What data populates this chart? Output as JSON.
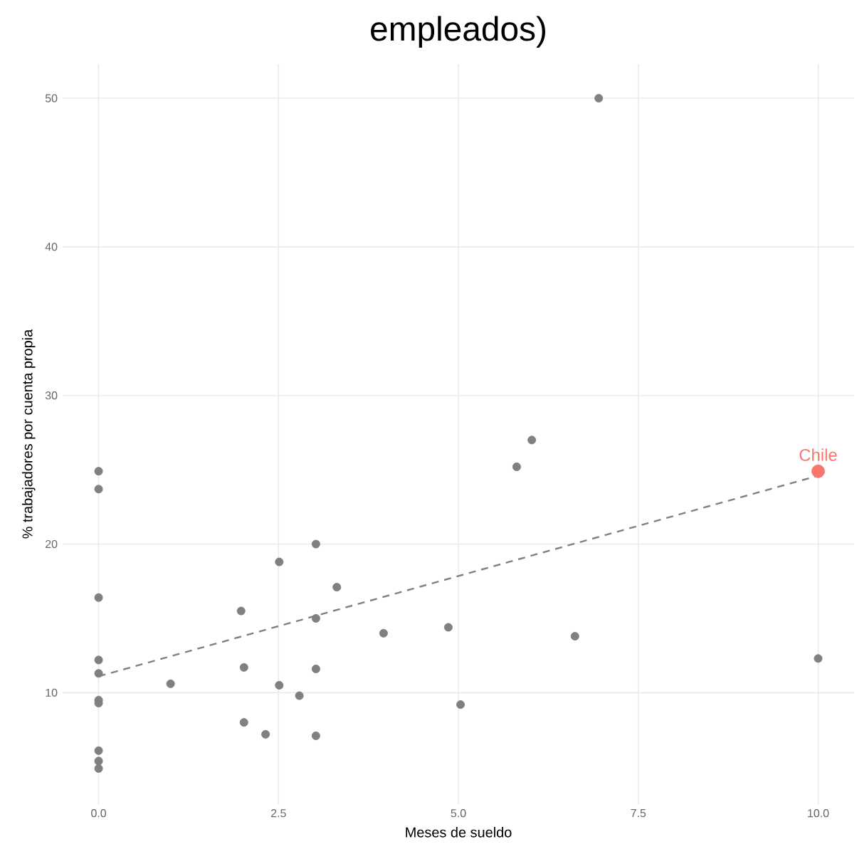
{
  "chart_data": {
    "type": "scatter",
    "title": "empleados)",
    "xlabel": "Meses de sueldo",
    "ylabel": "% trabajadores por cuenta propia",
    "xlim": [
      -0.5,
      10.5
    ],
    "ylim": [
      2.5,
      52.3
    ],
    "xticks": [
      {
        "value": 0,
        "label": "0.0"
      },
      {
        "value": 2.5,
        "label": "2.5"
      },
      {
        "value": 5,
        "label": "5.0"
      },
      {
        "value": 7.5,
        "label": "7.5"
      },
      {
        "value": 10,
        "label": "10.0"
      }
    ],
    "yticks": [
      10,
      20,
      30,
      40,
      50
    ],
    "grid": true,
    "series": [
      {
        "color": "#808080",
        "x": [
          0,
          0,
          0,
          0,
          0,
          0,
          0,
          0,
          0,
          0,
          1.0,
          1.98,
          2.02,
          2.02,
          2.32,
          2.51,
          2.51,
          2.79,
          3.02,
          3.02,
          3.02,
          3.02,
          3.31,
          3.96,
          4.86,
          5.03,
          5.81,
          6.02,
          6.62,
          6.95,
          10.0
        ],
        "values": [
          24.9,
          23.7,
          16.4,
          12.2,
          11.3,
          9.5,
          9.3,
          6.1,
          5.4,
          4.9,
          10.6,
          15.5,
          11.7,
          8.0,
          7.2,
          18.8,
          10.5,
          9.8,
          20.0,
          15.0,
          11.6,
          7.1,
          17.1,
          14.0,
          14.4,
          9.2,
          25.2,
          27.0,
          13.8,
          50.0,
          12.3
        ]
      },
      {
        "name": "Chile",
        "color": "#f8766d",
        "x": [
          10.0
        ],
        "values": [
          24.9
        ]
      },
      {
        "type": "line",
        "color": "#808080",
        "line_style": "dashed",
        "x": [
          0,
          10
        ],
        "values": [
          11.1,
          24.6
        ]
      }
    ]
  }
}
